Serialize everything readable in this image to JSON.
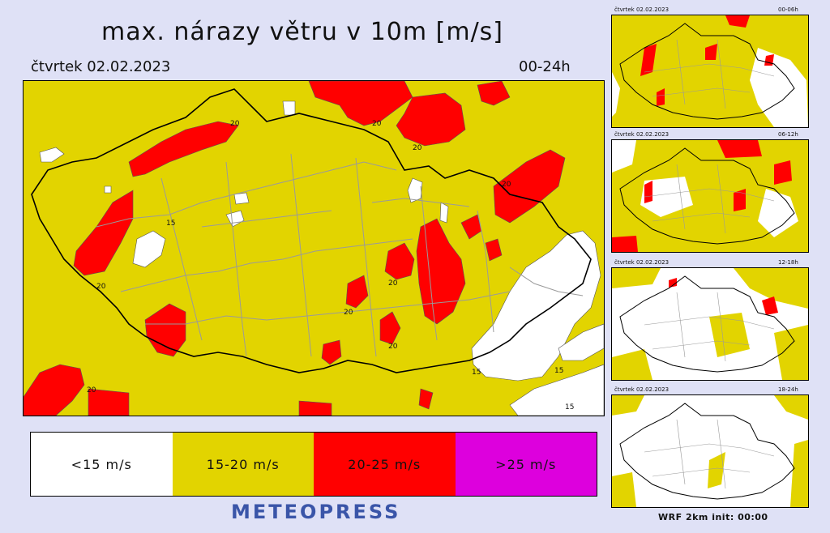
{
  "header": {
    "title": "max. nárazy větru v 10m [m/s]",
    "date": "čtvrtek 02.02.2023",
    "range": "00-24h"
  },
  "colors": {
    "lt15": "#ffffff",
    "r15_20": "#e2d400",
    "r20_25": "#ff0000",
    "gt25": "#dd00dd",
    "background": "#dfe1f6",
    "district_lines": "#9a9a9a",
    "border": "#000000"
  },
  "legend": [
    {
      "label": "<15 m/s",
      "color": "#ffffff"
    },
    {
      "label": "15-20 m/s",
      "color": "#e2d400"
    },
    {
      "label": "20-25 m/s",
      "color": "#ff0000"
    },
    {
      "label": ">25 m/s",
      "color": "#dd00dd"
    }
  ],
  "main_map": {
    "contour_labels": [
      "15",
      "20",
      "20",
      "20",
      "20",
      "20",
      "20",
      "20",
      "20",
      "15",
      "15",
      "15",
      "20"
    ]
  },
  "thumbnails": [
    {
      "date": "čtvrtek 02.02.2023",
      "range": "00-06h"
    },
    {
      "date": "čtvrtek 02.02.2023",
      "range": "06-12h"
    },
    {
      "date": "čtvrtek 02.02.2023",
      "range": "12-18h"
    },
    {
      "date": "čtvrtek 02.02.2023",
      "range": "18-24h"
    }
  ],
  "brand": "METEOPRESS",
  "footer": "WRF  2km  init: 00:00"
}
